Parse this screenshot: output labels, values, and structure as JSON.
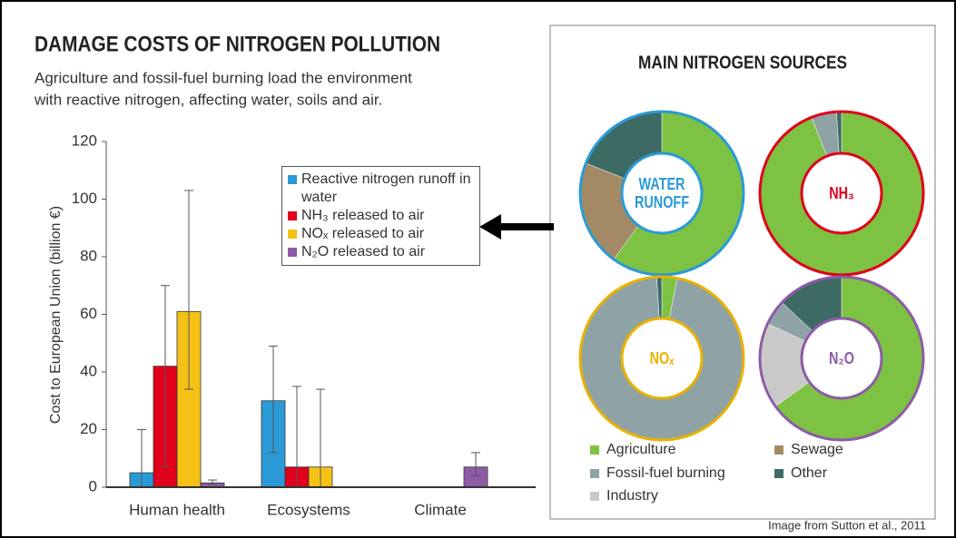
{
  "chart_data": [
    {
      "type": "bar",
      "title": "DAMAGE COSTS OF NITROGEN POLLUTION",
      "subtitle": [
        "Agriculture and fossil-fuel burning load the environment",
        "with reactive nitrogen, affecting water, soils and air."
      ],
      "ylabel": "Cost to European Union (billion €)",
      "categories": [
        "Human health",
        "Ecosystems",
        "Climate"
      ],
      "series": [
        {
          "name": "Reactive nitrogen runoff in water",
          "color": "#2a9ad6",
          "values": [
            5,
            30,
            null
          ],
          "error_low": [
            0,
            12,
            null
          ],
          "error_high": [
            20,
            49,
            null
          ]
        },
        {
          "name": "NH₃ released to air",
          "color": "#e0001b",
          "values": [
            42,
            7,
            null
          ],
          "error_low": [
            7,
            0,
            null
          ],
          "error_high": [
            70,
            35,
            null
          ]
        },
        {
          "name": "NOₓ released to air",
          "color": "#f5c116",
          "values": [
            61,
            7,
            null
          ],
          "error_low": [
            34,
            0,
            null
          ],
          "error_high": [
            103,
            34,
            null
          ]
        },
        {
          "name": "N₂O released to air",
          "color": "#8e5ba6",
          "values": [
            1.5,
            null,
            7
          ],
          "error_low": [
            1,
            null,
            4
          ],
          "error_high": [
            2.5,
            null,
            12
          ]
        }
      ],
      "ylim": [
        0,
        120
      ],
      "yticks": [
        0,
        20,
        40,
        60,
        80,
        100,
        120
      ],
      "grid": false
    },
    {
      "type": "donut",
      "title": "MAIN NITROGEN SOURCES",
      "categories": [
        "Agriculture",
        "Industry",
        "Fossil-fuel burning",
        "Sewage",
        "Other"
      ],
      "colors": [
        "#7dc242",
        "#c9c9c9",
        "#8fa3a6",
        "#a48a64",
        "#3d6b64"
      ],
      "charts": [
        {
          "label": "WATER RUNOFF",
          "color": "#2a9ad6",
          "values": [
            60,
            null,
            null,
            21,
            19
          ]
        },
        {
          "label": "NH₃",
          "color": "#e0001b",
          "values": [
            94,
            null,
            5,
            null,
            1
          ]
        },
        {
          "label": "NOₓ",
          "color": "#e8b200",
          "values": [
            3,
            null,
            96,
            null,
            1
          ]
        },
        {
          "label": "N₂O",
          "color": "#8e5ba6",
          "values": [
            65,
            17,
            5,
            null,
            13
          ]
        }
      ]
    }
  ],
  "source": "Image from Sutton et al., 2011"
}
